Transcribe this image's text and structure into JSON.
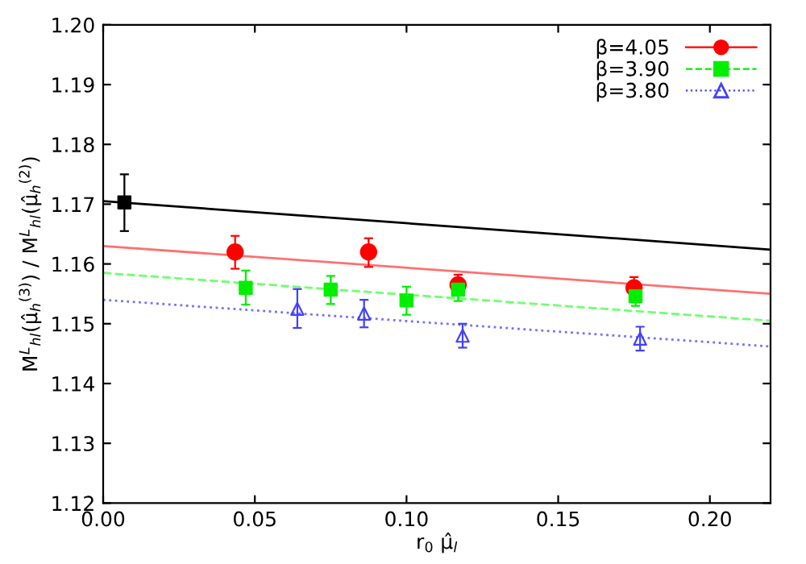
{
  "chart_data": {
    "type": "scatter",
    "xlabel": "r$_{0}$ μ̂$_{l}$",
    "ylabel": "M$^{L}$$_{hl}$(μ̂$_{h}$$^{(3)}$) / M$^{L}$$_{hl}$(μ̂$_{h}$$^{(2)}$)",
    "xlim": [
      0,
      0.22
    ],
    "ylim": [
      1.12,
      1.2
    ],
    "xticks": [
      {
        "value": 0,
        "label": "0.00"
      },
      0.05,
      {
        "value": 0.1,
        "label": "0.10"
      },
      0.15,
      {
        "value": 0.2,
        "label": "0.20"
      }
    ],
    "yticks": [
      {
        "value": 1.12,
        "label": "1.12"
      },
      1.13,
      1.14,
      1.15,
      1.16,
      1.17,
      1.18,
      1.19,
      {
        "value": 1.2,
        "label": "1.20"
      }
    ],
    "grid": false,
    "legend": "top right",
    "series": [
      {
        "type": "line",
        "color": "#000000",
        "x": [
          0,
          0.22
        ],
        "values": [
          1.1705,
          1.1624
        ],
        "line_style": "solid",
        "marker": "none"
      },
      {
        "type": "line",
        "color": "#ff7070",
        "x": [
          0,
          0.22
        ],
        "values": [
          1.163,
          1.155
        ],
        "line_style": "solid",
        "marker": "none"
      },
      {
        "type": "line",
        "color": "#70ff70",
        "x": [
          0,
          0.22
        ],
        "values": [
          1.1585,
          1.1505
        ],
        "line_style": "dashed",
        "marker": "none"
      },
      {
        "type": "line",
        "color": "#7070ff",
        "x": [
          0,
          0.22
        ],
        "values": [
          1.154,
          1.1462
        ],
        "line_style": "dotted",
        "marker": "none"
      },
      {
        "color": "#000000",
        "marker": "square",
        "line_style": "solid",
        "x": [
          0.007
        ],
        "values": [
          1.1703
        ],
        "errors": [
          [
            1.1655,
            1.175
          ]
        ]
      },
      {
        "name": "β=4.05",
        "color": "#ff0000",
        "marker": "circle",
        "line_style": "solid",
        "x": [
          0.0435,
          0.0875,
          0.117,
          0.175
        ],
        "values": [
          1.162,
          1.162,
          1.1565,
          1.156
        ],
        "errors": [
          [
            1.1592,
            1.1647
          ],
          [
            1.1595,
            1.1643
          ],
          [
            1.1548,
            1.1582
          ],
          [
            1.156,
            1.1578
          ]
        ]
      },
      {
        "name": "β=3.90",
        "color": "#00ee00",
        "marker": "square",
        "line_style": "dashed",
        "x": [
          0.047,
          0.075,
          0.1,
          0.117,
          0.1755
        ],
        "values": [
          1.156,
          1.1557,
          1.1539,
          1.1557,
          1.1546
        ],
        "errors": [
          [
            1.1532,
            1.1589
          ],
          [
            1.1533,
            1.158
          ],
          [
            1.1515,
            1.1562
          ],
          [
            1.1538,
            1.1574
          ],
          [
            1.153,
            1.1563
          ]
        ]
      },
      {
        "name": "β=3.80",
        "color": "#4040ff",
        "marker": "triangle",
        "line_style": "dotted",
        "x": [
          0.064,
          0.086,
          0.1185,
          0.177
        ],
        "values": [
          1.1525,
          1.1517,
          1.148,
          1.1475
        ],
        "errors": [
          [
            1.1493,
            1.1558
          ],
          [
            1.1494,
            1.154
          ],
          [
            1.146,
            1.15
          ],
          [
            1.1455,
            1.1495
          ]
        ]
      }
    ]
  }
}
